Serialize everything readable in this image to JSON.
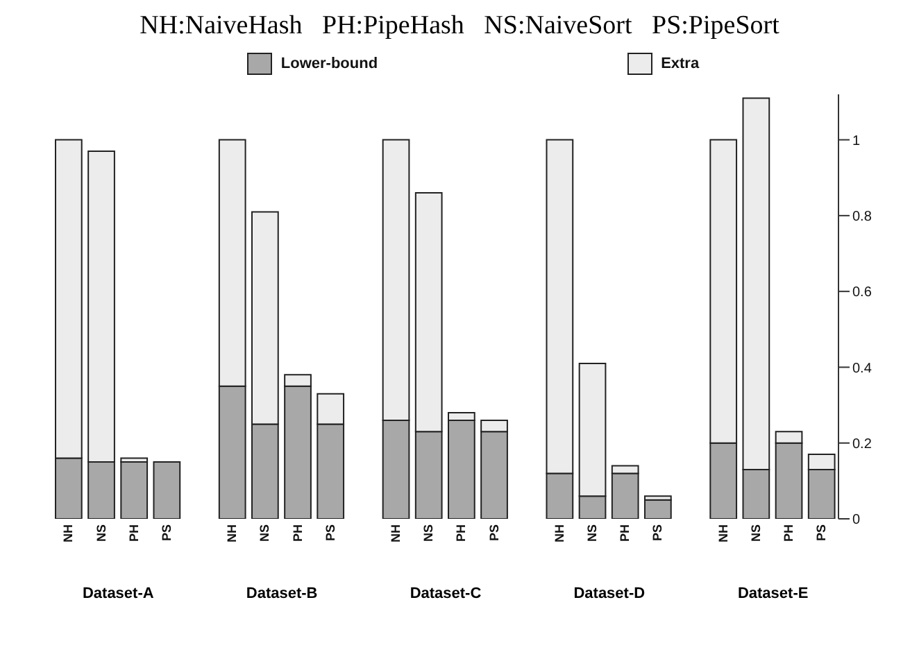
{
  "chart_data": {
    "type": "bar",
    "title": "NH:NaiveHash   PH:PipeHash   NS:NaiveSort   PS:PipeSort",
    "categories": [
      "NH",
      "NS",
      "PH",
      "PS",
      null,
      "NH",
      "NS",
      "PH",
      "PS",
      null,
      "NH",
      "NS",
      "PH",
      "PS",
      null,
      "NH",
      "NS",
      "PH",
      "PS",
      null,
      "NH",
      "NS",
      "PH",
      "PS"
    ],
    "series": [
      {
        "name": "Lower-bound",
        "color": "#a8a8a8",
        "values": [
          0.16,
          0.15,
          0.15,
          0.15,
          null,
          0.35,
          0.25,
          0.35,
          0.25,
          null,
          0.26,
          0.23,
          0.26,
          0.23,
          null,
          0.12,
          0.06,
          0.12,
          0.05,
          null,
          0.2,
          0.13,
          0.2,
          0.13
        ]
      },
      {
        "name": "Extra",
        "color": "#ececec",
        "values": [
          0.84,
          0.82,
          0.01,
          0.0,
          null,
          0.65,
          0.56,
          0.03,
          0.08,
          null,
          0.74,
          0.63,
          0.02,
          0.03,
          null,
          0.88,
          0.35,
          0.02,
          0.01,
          null,
          0.8,
          0.98,
          0.03,
          0.04
        ]
      }
    ],
    "stacked": true,
    "ylim": [
      0,
      1.12
    ],
    "yticks": [
      0,
      0.2,
      0.4,
      0.6,
      0.8,
      1
    ],
    "grid": false,
    "legend": "top",
    "annotations": [
      "Dataset-A",
      "Dataset-B",
      "Dataset-C",
      "Dataset-D",
      "Dataset-E"
    ]
  }
}
